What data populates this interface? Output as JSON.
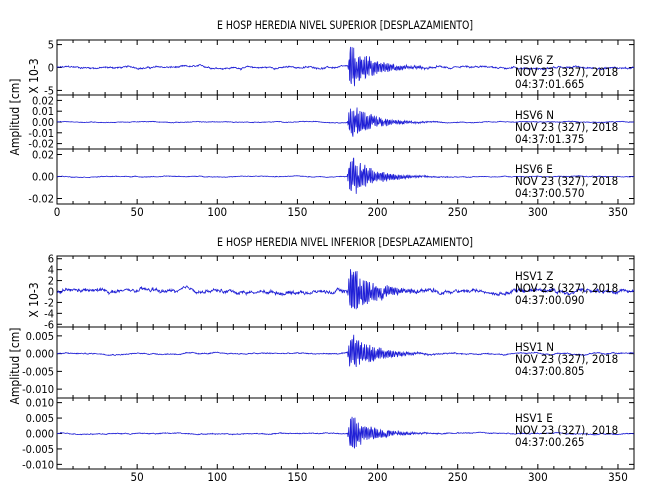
{
  "chart_data": [
    {
      "type": "line",
      "title": "E HOSP HEREDIA NIVEL SUPERIOR [DESPLAZAMIENTO]",
      "ylabel": "Amplitud [cm]",
      "xlim": [
        0,
        360
      ],
      "x_ticks": [
        0,
        50,
        100,
        150,
        200,
        250,
        300,
        350
      ],
      "x_tick_labels": [
        "0",
        "50",
        "100",
        "150",
        "200",
        "250",
        "300",
        "350"
      ],
      "line_color": "#1f1fd6",
      "grid": false,
      "event_onset_x": 181,
      "panels": [
        {
          "channel": "HSV6  Z",
          "date": "NOV 23 (327), 2018",
          "time": "04:37:01.665",
          "scale_label": "X 10-3",
          "ylim": [
            -6,
            6
          ],
          "yticks": [
            5,
            0,
            -5
          ],
          "ytick_labels": [
            "5",
            "0",
            "-5"
          ],
          "peak_amplitude": 5.5,
          "noise_amplitude": 0.35
        },
        {
          "channel": "HSV6  N",
          "date": "NOV 23 (327), 2018",
          "time": "04:37:01.375",
          "ylim": [
            -0.025,
            0.025
          ],
          "yticks": [
            0.02,
            0.01,
            0.0,
            -0.01,
            -0.02
          ],
          "ytick_labels": [
            "0.02",
            "0.01",
            "0.00",
            "-0.01",
            "-0.02"
          ],
          "peak_amplitude": 0.019,
          "noise_amplitude": 0.0006
        },
        {
          "channel": "HSV6  E",
          "date": "NOV 23 (327), 2018",
          "time": "04:37:00.570",
          "ylim": [
            -0.025,
            0.025
          ],
          "yticks": [
            0.02,
            0.0,
            -0.02
          ],
          "ytick_labels": [
            "0.02",
            "0.00",
            "-0.02"
          ],
          "peak_amplitude": 0.021,
          "noise_amplitude": 0.0006
        }
      ]
    },
    {
      "type": "line",
      "title": "E HOSP HEREDIA NIVEL INFERIOR [DESPLAZAMIENTO]",
      "ylabel": "Amplitud [cm]",
      "xlim": [
        0,
        360
      ],
      "x_ticks": [
        50,
        100,
        150,
        200,
        250,
        300,
        350
      ],
      "x_tick_labels": [
        "50",
        "100",
        "150",
        "200",
        "250",
        "300",
        "350"
      ],
      "line_color": "#1f1fd6",
      "grid": false,
      "event_onset_x": 181,
      "panels": [
        {
          "channel": "HSV1   Z",
          "date": "NOV 23 (327), 2018",
          "time": "04:37:00.090",
          "scale_label": "X 10-3",
          "ylim": [
            -6.5,
            6.5
          ],
          "yticks": [
            6,
            4,
            2,
            0,
            -2,
            -4,
            -6
          ],
          "ytick_labels": [
            "6",
            "4",
            "2",
            "0",
            "-2",
            "-4",
            "-6"
          ],
          "peak_amplitude": 5.5,
          "noise_amplitude": 0.6
        },
        {
          "channel": "HSV1   N",
          "date": "NOV 23 (327), 2018",
          "time": "04:37:00.805",
          "ylim": [
            -0.0125,
            0.0075
          ],
          "yticks": [
            0.005,
            0.0,
            -0.005,
            -0.01
          ],
          "ytick_labels": [
            "0.005",
            "0.000",
            "-0.005",
            "-0.010"
          ],
          "peak_amplitude": 0.0065,
          "noise_amplitude": 0.0003
        },
        {
          "channel": "HSV1   E",
          "date": "NOV 23 (327), 2018",
          "time": "04:37:00.265",
          "ylim": [
            -0.0115,
            0.0115
          ],
          "yticks": [
            0.01,
            0.005,
            0.0,
            -0.005,
            -0.01
          ],
          "ytick_labels": [
            "0.010",
            "0.005",
            "0.000",
            "-0.005",
            "-0.010"
          ],
          "peak_amplitude": 0.0065,
          "noise_amplitude": 0.0003
        }
      ]
    }
  ]
}
